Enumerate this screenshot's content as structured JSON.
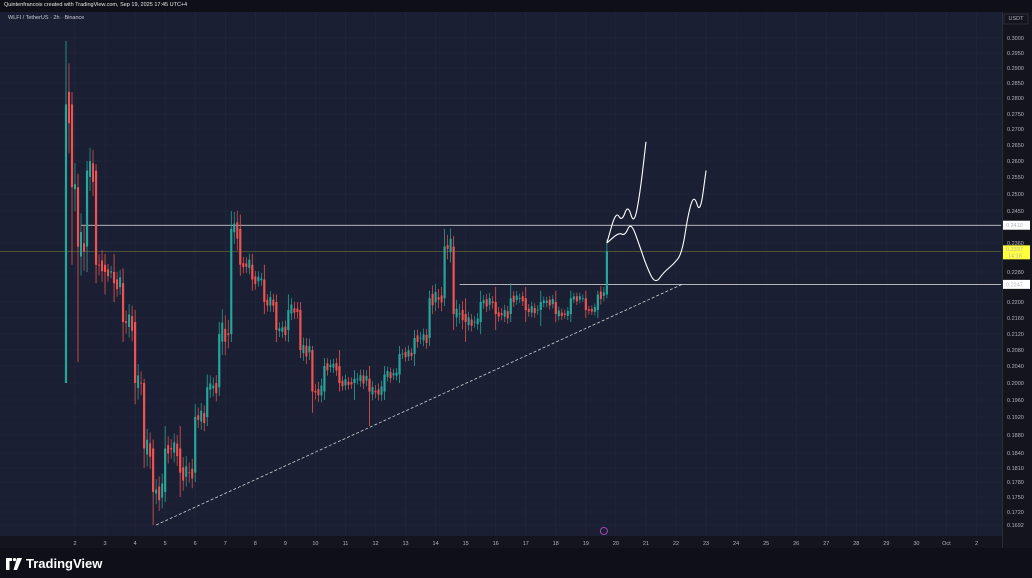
{
  "header": {
    "attribution": "Quintenfrancois created with TradingView.com, Sep 19, 2025 17:45 UTC+4",
    "symbol": "WLFI / TetherUS · 2h · Binance"
  },
  "footer": {
    "brand": "TradingView"
  },
  "colors": {
    "up": "#26a69a",
    "down": "#ef5350",
    "current_price_badge": "#ffff3b",
    "background": "#1b1f33"
  },
  "chart_data": {
    "type": "candlestick",
    "symbol": "WLFI / TetherUS",
    "interval": "2h",
    "exchange": "Binance",
    "currency_label": "USDT",
    "y_ticks": [
      0.3,
      0.295,
      0.29,
      0.285,
      0.28,
      0.275,
      0.27,
      0.265,
      0.26,
      0.255,
      0.25,
      0.245,
      0.236,
      0.228,
      0.22,
      0.216,
      0.212,
      0.208,
      0.204,
      0.2,
      0.196,
      0.192,
      0.188,
      0.184,
      0.181,
      0.178,
      0.175,
      0.172,
      0.1692
    ],
    "y_tick_labels": [
      "0.3000",
      "0.2950",
      "0.2900",
      "0.2850",
      "0.2800",
      "0.2750",
      "0.2700",
      "0.2650",
      "0.2600",
      "0.2550",
      "0.2500",
      "0.2450",
      "0.2360",
      "0.2280",
      "0.2200",
      "0.2160",
      "0.2120",
      "0.2080",
      "0.2040",
      "0.2000",
      "0.1960",
      "0.1920",
      "0.1880",
      "0.1840",
      "0.1810",
      "0.1780",
      "0.1750",
      "0.1720",
      "0.1692"
    ],
    "x_ticks": [
      "2",
      "3",
      "4",
      "5",
      "6",
      "7",
      "8",
      "9",
      "10",
      "11",
      "12",
      "13",
      "14",
      "15",
      "16",
      "17",
      "18",
      "19",
      "20",
      "21",
      "22",
      "23",
      "24",
      "25",
      "26",
      "27",
      "28",
      "29",
      "30",
      "Oct",
      "2"
    ],
    "price_badges": [
      {
        "value": 0.241,
        "label": "0.2410",
        "style": "white"
      },
      {
        "value": 0.2337,
        "label": "0.2337",
        "sublabel": "14:18",
        "style": "yellow"
      },
      {
        "value": 0.2247,
        "label": "0.2247",
        "style": "white"
      }
    ],
    "horizontal_levels": [
      {
        "value": 0.241,
        "from_day": 2.2,
        "to_day": "end"
      },
      {
        "value": 0.2247,
        "from_day": 14.8,
        "to_day": "end"
      },
      {
        "value": 0.2337,
        "from_day": 1,
        "to_day": "end",
        "style": "current"
      }
    ],
    "trendline": {
      "from": {
        "day": 4.7,
        "value": 0.1692
      },
      "to": {
        "day": 22.2,
        "value": 0.2247
      },
      "style": "dashed"
    },
    "drawn_paths": [
      {
        "name": "projection-up",
        "points": [
          [
            19.7,
            0.236
          ],
          [
            20.0,
            0.245
          ],
          [
            20.2,
            0.242
          ],
          [
            20.4,
            0.247
          ],
          [
            20.6,
            0.241
          ],
          [
            20.8,
            0.25
          ],
          [
            21.0,
            0.266
          ]
        ]
      },
      {
        "name": "projection-dip",
        "points": [
          [
            19.7,
            0.236
          ],
          [
            20.1,
            0.239
          ],
          [
            20.3,
            0.238
          ],
          [
            20.5,
            0.242
          ],
          [
            20.8,
            0.235
          ],
          [
            21.0,
            0.23
          ],
          [
            21.3,
            0.2247
          ],
          [
            21.6,
            0.228
          ],
          [
            21.9,
            0.23
          ],
          [
            22.2,
            0.233
          ],
          [
            22.4,
            0.244
          ],
          [
            22.6,
            0.25
          ],
          [
            22.8,
            0.244
          ],
          [
            23.0,
            0.257
          ]
        ]
      }
    ],
    "candles_daily_ohlc": [
      {
        "day": 1.7,
        "open": 0.2,
        "high": 0.299,
        "low": 0.2,
        "close": 0.278
      },
      {
        "day": 1.9,
        "open": 0.278,
        "high": 0.282,
        "low": 0.23,
        "close": 0.252
      },
      {
        "day": 2.1,
        "open": 0.252,
        "high": 0.256,
        "low": 0.205,
        "close": 0.235
      },
      {
        "day": 2.4,
        "open": 0.235,
        "high": 0.26,
        "low": 0.228,
        "close": 0.257
      },
      {
        "day": 2.7,
        "open": 0.257,
        "high": 0.259,
        "low": 0.225,
        "close": 0.23
      },
      {
        "day": 3.0,
        "open": 0.23,
        "high": 0.233,
        "low": 0.222,
        "close": 0.228
      },
      {
        "day": 3.3,
        "open": 0.228,
        "high": 0.233,
        "low": 0.22,
        "close": 0.225
      },
      {
        "day": 3.6,
        "open": 0.225,
        "high": 0.229,
        "low": 0.21,
        "close": 0.215
      },
      {
        "day": 4.0,
        "open": 0.215,
        "high": 0.218,
        "low": 0.195,
        "close": 0.2
      },
      {
        "day": 4.3,
        "open": 0.2,
        "high": 0.201,
        "low": 0.181,
        "close": 0.185
      },
      {
        "day": 4.6,
        "open": 0.185,
        "high": 0.187,
        "low": 0.1692,
        "close": 0.176
      },
      {
        "day": 5.0,
        "open": 0.176,
        "high": 0.19,
        "low": 0.174,
        "close": 0.185
      },
      {
        "day": 5.5,
        "open": 0.185,
        "high": 0.19,
        "low": 0.175,
        "close": 0.18
      },
      {
        "day": 6.0,
        "open": 0.18,
        "high": 0.195,
        "low": 0.178,
        "close": 0.192
      },
      {
        "day": 6.4,
        "open": 0.192,
        "high": 0.202,
        "low": 0.19,
        "close": 0.199
      },
      {
        "day": 6.8,
        "open": 0.199,
        "high": 0.215,
        "low": 0.197,
        "close": 0.212
      },
      {
        "day": 7.2,
        "open": 0.212,
        "high": 0.245,
        "low": 0.21,
        "close": 0.24
      },
      {
        "day": 7.5,
        "open": 0.24,
        "high": 0.244,
        "low": 0.227,
        "close": 0.23
      },
      {
        "day": 7.9,
        "open": 0.23,
        "high": 0.233,
        "low": 0.223,
        "close": 0.226
      },
      {
        "day": 8.3,
        "open": 0.226,
        "high": 0.23,
        "low": 0.217,
        "close": 0.22
      },
      {
        "day": 8.7,
        "open": 0.22,
        "high": 0.222,
        "low": 0.21,
        "close": 0.213
      },
      {
        "day": 9.1,
        "open": 0.213,
        "high": 0.222,
        "low": 0.21,
        "close": 0.218
      },
      {
        "day": 9.5,
        "open": 0.218,
        "high": 0.22,
        "low": 0.206,
        "close": 0.208
      },
      {
        "day": 9.9,
        "open": 0.208,
        "high": 0.209,
        "low": 0.193,
        "close": 0.198
      },
      {
        "day": 10.3,
        "open": 0.198,
        "high": 0.206,
        "low": 0.196,
        "close": 0.204
      },
      {
        "day": 10.8,
        "open": 0.204,
        "high": 0.208,
        "low": 0.198,
        "close": 0.2
      },
      {
        "day": 11.3,
        "open": 0.2,
        "high": 0.203,
        "low": 0.196,
        "close": 0.201
      },
      {
        "day": 11.8,
        "open": 0.201,
        "high": 0.204,
        "low": 0.19,
        "close": 0.198
      },
      {
        "day": 12.3,
        "open": 0.198,
        "high": 0.204,
        "low": 0.196,
        "close": 0.202
      },
      {
        "day": 12.8,
        "open": 0.202,
        "high": 0.209,
        "low": 0.2,
        "close": 0.207
      },
      {
        "day": 13.3,
        "open": 0.207,
        "high": 0.213,
        "low": 0.204,
        "close": 0.211
      },
      {
        "day": 13.8,
        "open": 0.211,
        "high": 0.223,
        "low": 0.209,
        "close": 0.221
      },
      {
        "day": 14.3,
        "open": 0.221,
        "high": 0.24,
        "low": 0.219,
        "close": 0.235
      },
      {
        "day": 14.6,
        "open": 0.235,
        "high": 0.238,
        "low": 0.213,
        "close": 0.217
      },
      {
        "day": 15.0,
        "open": 0.217,
        "high": 0.221,
        "low": 0.21,
        "close": 0.215
      },
      {
        "day": 15.5,
        "open": 0.215,
        "high": 0.223,
        "low": 0.212,
        "close": 0.22
      },
      {
        "day": 16.0,
        "open": 0.22,
        "high": 0.224,
        "low": 0.213,
        "close": 0.217
      },
      {
        "day": 16.5,
        "open": 0.217,
        "high": 0.225,
        "low": 0.215,
        "close": 0.221
      },
      {
        "day": 17.0,
        "open": 0.221,
        "high": 0.224,
        "low": 0.215,
        "close": 0.218
      },
      {
        "day": 17.5,
        "open": 0.218,
        "high": 0.223,
        "low": 0.214,
        "close": 0.22
      },
      {
        "day": 18.0,
        "open": 0.22,
        "high": 0.223,
        "low": 0.215,
        "close": 0.217
      },
      {
        "day": 18.5,
        "open": 0.217,
        "high": 0.223,
        "low": 0.215,
        "close": 0.221
      },
      {
        "day": 19.0,
        "open": 0.221,
        "high": 0.223,
        "low": 0.216,
        "close": 0.218
      },
      {
        "day": 19.4,
        "open": 0.218,
        "high": 0.223,
        "low": 0.216,
        "close": 0.222
      },
      {
        "day": 19.7,
        "open": 0.222,
        "high": 0.237,
        "low": 0.221,
        "close": 0.2337
      }
    ]
  }
}
